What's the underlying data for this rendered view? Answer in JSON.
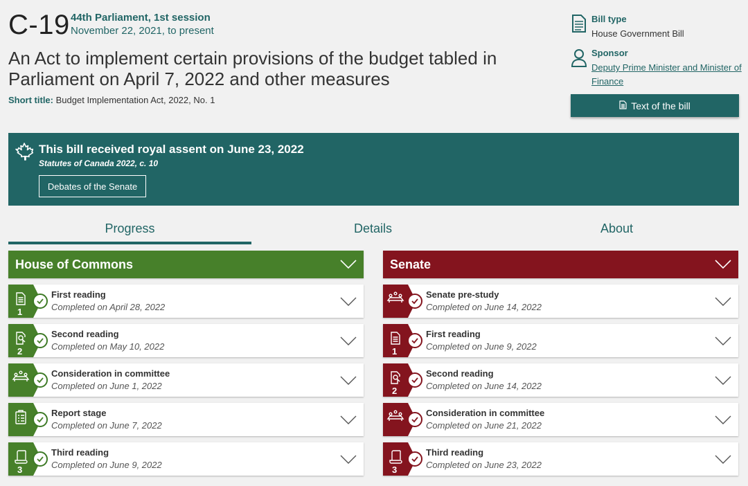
{
  "header": {
    "bill_number": "C-19",
    "parliament": "44th Parliament, 1st session",
    "dates": "November 22, 2021, to present",
    "title": "An Act to implement certain provisions of the budget tabled in Parliament on April 7, 2022 and other measures",
    "short_title_label": "Short title:",
    "short_title": "Budget Implementation Act, 2022, No. 1"
  },
  "sidebar": {
    "bill_type_label": "Bill type",
    "bill_type": "House Government Bill",
    "sponsor_label": "Sponsor",
    "sponsor": "Deputy Prime Minister and Minister of Finance",
    "text_button": "Text of the bill"
  },
  "banner": {
    "assent": "This bill received royal assent on June 23, 2022",
    "statutes": "Statutes of Canada 2022, c. 10",
    "debates_button": "Debates of the Senate"
  },
  "tabs": [
    "Progress",
    "Details",
    "About"
  ],
  "active_tab": "Progress",
  "commons": {
    "heading": "House of Commons",
    "color": "#47802a",
    "stages": [
      {
        "name": "First reading",
        "date": "Completed on April 28, 2022",
        "icon": "document-icon",
        "number": "1"
      },
      {
        "name": "Second reading",
        "date": "Completed on May 10, 2022",
        "icon": "document-search-icon",
        "number": "2"
      },
      {
        "name": "Consideration in committee",
        "date": "Completed on June 1, 2022",
        "icon": "committee-icon",
        "number": ""
      },
      {
        "name": "Report stage",
        "date": "Completed on June 7, 2022",
        "icon": "clipboard-icon",
        "number": ""
      },
      {
        "name": "Third reading",
        "date": "Completed on June 9, 2022",
        "icon": "scroll-icon",
        "number": "3"
      }
    ]
  },
  "senate": {
    "heading": "Senate",
    "color": "#84141e",
    "stages": [
      {
        "name": "Senate pre-study",
        "date": "Completed on June 14, 2022",
        "icon": "committee-icon",
        "number": ""
      },
      {
        "name": "First reading",
        "date": "Completed on June 9, 2022",
        "icon": "document-icon",
        "number": "1"
      },
      {
        "name": "Second reading",
        "date": "Completed on June 14, 2022",
        "icon": "document-search-icon",
        "number": "2"
      },
      {
        "name": "Consideration in committee",
        "date": "Completed on June 21, 2022",
        "icon": "committee-icon",
        "number": ""
      },
      {
        "name": "Third reading",
        "date": "Completed on June 23, 2022",
        "icon": "scroll-icon",
        "number": "3"
      }
    ]
  }
}
